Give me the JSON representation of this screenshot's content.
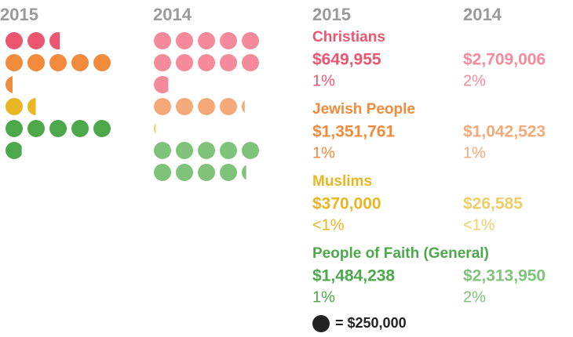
{
  "chart_data": {
    "type": "dot",
    "years": [
      "2015",
      "2014"
    ],
    "unit": {
      "value": 250000,
      "label": "= $250,000"
    },
    "series": [
      {
        "name": "Christians",
        "colors": [
          "#ec5670",
          "#f48a9b"
        ],
        "values": [
          649955,
          2709006
        ],
        "value_labels": [
          "$649,955",
          "$2,709,006"
        ],
        "shares": [
          "1%",
          "2%"
        ]
      },
      {
        "name": "Jewish People",
        "colors": [
          "#f28a3c",
          "#f6a978"
        ],
        "values": [
          1351761,
          1042523
        ],
        "value_labels": [
          "$1,351,761",
          "$1,042,523"
        ],
        "shares": [
          "1%",
          "1%"
        ]
      },
      {
        "name": "Muslims",
        "colors": [
          "#e8b523",
          "#f0cd66"
        ],
        "values": [
          370000,
          26585
        ],
        "value_labels": [
          "$370,000",
          "$26,585"
        ],
        "shares": [
          "<1%",
          "<1%"
        ]
      },
      {
        "name": "People of Faith (General)",
        "colors": [
          "#4ca84a",
          "#7fc37a"
        ],
        "values": [
          1484238,
          2313950
        ],
        "value_labels": [
          "$1,484,238",
          "$2,313,950"
        ],
        "shares": [
          "1%",
          "2%"
        ]
      }
    ]
  }
}
